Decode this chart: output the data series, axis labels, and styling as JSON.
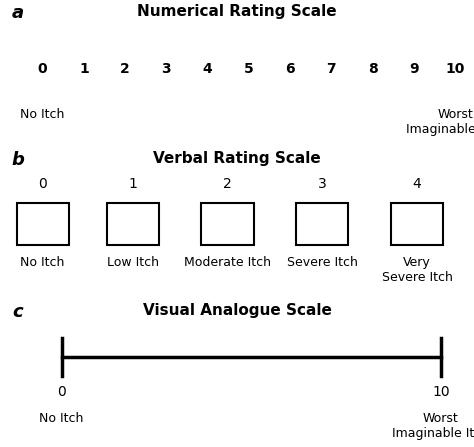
{
  "bg_color": "#ffffff",
  "section_a": {
    "label": "a",
    "title": "Numerical Rating Scale",
    "numbers": [
      0,
      1,
      2,
      3,
      4,
      5,
      6,
      7,
      8,
      9,
      10
    ],
    "left_label": "No Itch",
    "right_label": "Worst\nImaginable Itch"
  },
  "section_b": {
    "label": "b",
    "title": "Verbal Rating Scale",
    "numbers": [
      0,
      1,
      2,
      3,
      4
    ],
    "labels": [
      "No Itch",
      "Low Itch",
      "Moderate Itch",
      "Severe Itch",
      "Very\nSevere Itch"
    ]
  },
  "section_c": {
    "label": "c",
    "title": "Visual Analogue Scale",
    "left_val": "0",
    "right_val": "10",
    "left_label": "No Itch",
    "right_label": "Worst\nImaginable Itch"
  },
  "text_color": "#000000",
  "title_fontsize": 11,
  "label_fontsize": 9,
  "tick_fontsize": 10,
  "section_label_fontsize": 13
}
